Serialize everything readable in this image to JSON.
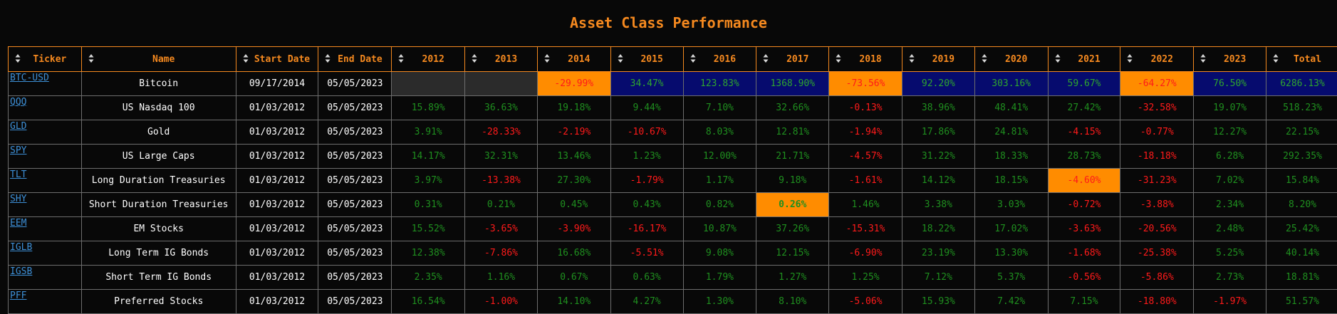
{
  "title": "Asset Class Performance",
  "colors": {
    "accent": "#f5891f",
    "positive": "#1f8f1f",
    "negative": "#ff1a1a",
    "link": "#3d8fd6",
    "highlight_orange": "#ff8c00",
    "highlight_navy": "#060b6e"
  },
  "headers": [
    "Ticker",
    "Name",
    "Start Date",
    "End Date",
    "2012",
    "2013",
    "2014",
    "2015",
    "2016",
    "2017",
    "2018",
    "2019",
    "2020",
    "2021",
    "2022",
    "2023",
    "Total"
  ],
  "rows": [
    {
      "ticker": "BTC-USD",
      "name": "Bitcoin",
      "start": "09/17/2014",
      "end": "05/05/2023",
      "values": [
        "",
        "",
        "-29.99%",
        "34.47%",
        "123.83%",
        "1368.90%",
        "-73.56%",
        "92.20%",
        "303.16%",
        "59.67%",
        "-64.27%",
        "76.50%",
        "6286.13%"
      ]
    },
    {
      "ticker": "QQQ",
      "name": "US Nasdaq 100",
      "start": "01/03/2012",
      "end": "05/05/2023",
      "values": [
        "15.89%",
        "36.63%",
        "19.18%",
        "9.44%",
        "7.10%",
        "32.66%",
        "-0.13%",
        "38.96%",
        "48.41%",
        "27.42%",
        "-32.58%",
        "19.07%",
        "518.23%"
      ]
    },
    {
      "ticker": "GLD",
      "name": "Gold",
      "start": "01/03/2012",
      "end": "05/05/2023",
      "values": [
        "3.91%",
        "-28.33%",
        "-2.19%",
        "-10.67%",
        "8.03%",
        "12.81%",
        "-1.94%",
        "17.86%",
        "24.81%",
        "-4.15%",
        "-0.77%",
        "12.27%",
        "22.15%"
      ]
    },
    {
      "ticker": "SPY",
      "name": "US Large Caps",
      "start": "01/03/2012",
      "end": "05/05/2023",
      "values": [
        "14.17%",
        "32.31%",
        "13.46%",
        "1.23%",
        "12.00%",
        "21.71%",
        "-4.57%",
        "31.22%",
        "18.33%",
        "28.73%",
        "-18.18%",
        "6.28%",
        "292.35%"
      ]
    },
    {
      "ticker": "TLT",
      "name": "Long Duration Treasuries",
      "start": "01/03/2012",
      "end": "05/05/2023",
      "values": [
        "3.97%",
        "-13.38%",
        "27.30%",
        "-1.79%",
        "1.17%",
        "9.18%",
        "-1.61%",
        "14.12%",
        "18.15%",
        "-4.60%",
        "-31.23%",
        "7.02%",
        "15.84%"
      ]
    },
    {
      "ticker": "SHY",
      "name": "Short Duration Treasuries",
      "start": "01/03/2012",
      "end": "05/05/2023",
      "values": [
        "0.31%",
        "0.21%",
        "0.45%",
        "0.43%",
        "0.82%",
        "0.26%",
        "1.46%",
        "3.38%",
        "3.03%",
        "-0.72%",
        "-3.88%",
        "2.34%",
        "8.20%"
      ]
    },
    {
      "ticker": "EEM",
      "name": "EM Stocks",
      "start": "01/03/2012",
      "end": "05/05/2023",
      "values": [
        "15.52%",
        "-3.65%",
        "-3.90%",
        "-16.17%",
        "10.87%",
        "37.26%",
        "-15.31%",
        "18.22%",
        "17.02%",
        "-3.63%",
        "-20.56%",
        "2.48%",
        "25.42%"
      ]
    },
    {
      "ticker": "IGLB",
      "name": "Long Term IG Bonds",
      "start": "01/03/2012",
      "end": "05/05/2023",
      "values": [
        "12.38%",
        "-7.86%",
        "16.68%",
        "-5.51%",
        "9.08%",
        "12.15%",
        "-6.90%",
        "23.19%",
        "13.30%",
        "-1.68%",
        "-25.38%",
        "5.25%",
        "40.14%"
      ]
    },
    {
      "ticker": "IGSB",
      "name": "Short Term IG Bonds",
      "start": "01/03/2012",
      "end": "05/05/2023",
      "values": [
        "2.35%",
        "1.16%",
        "0.67%",
        "0.63%",
        "1.79%",
        "1.27%",
        "1.25%",
        "7.12%",
        "5.37%",
        "-0.56%",
        "-5.86%",
        "2.73%",
        "18.81%"
      ]
    },
    {
      "ticker": "PFF",
      "name": "Preferred Stocks",
      "start": "01/03/2012",
      "end": "05/05/2023",
      "values": [
        "16.54%",
        "-1.00%",
        "14.10%",
        "4.27%",
        "1.30%",
        "8.10%",
        "-5.06%",
        "15.93%",
        "7.42%",
        "7.15%",
        "-18.80%",
        "-1.97%",
        "51.57%"
      ]
    }
  ],
  "highlights": {
    "navy": [
      [
        0,
        3
      ],
      [
        0,
        4
      ],
      [
        0,
        5
      ],
      [
        0,
        7
      ],
      [
        0,
        8
      ],
      [
        0,
        9
      ],
      [
        0,
        11
      ],
      [
        0,
        12
      ]
    ],
    "orange": [
      [
        0,
        2
      ],
      [
        0,
        6
      ],
      [
        0,
        10
      ],
      [
        4,
        9
      ],
      [
        5,
        5
      ]
    ]
  }
}
